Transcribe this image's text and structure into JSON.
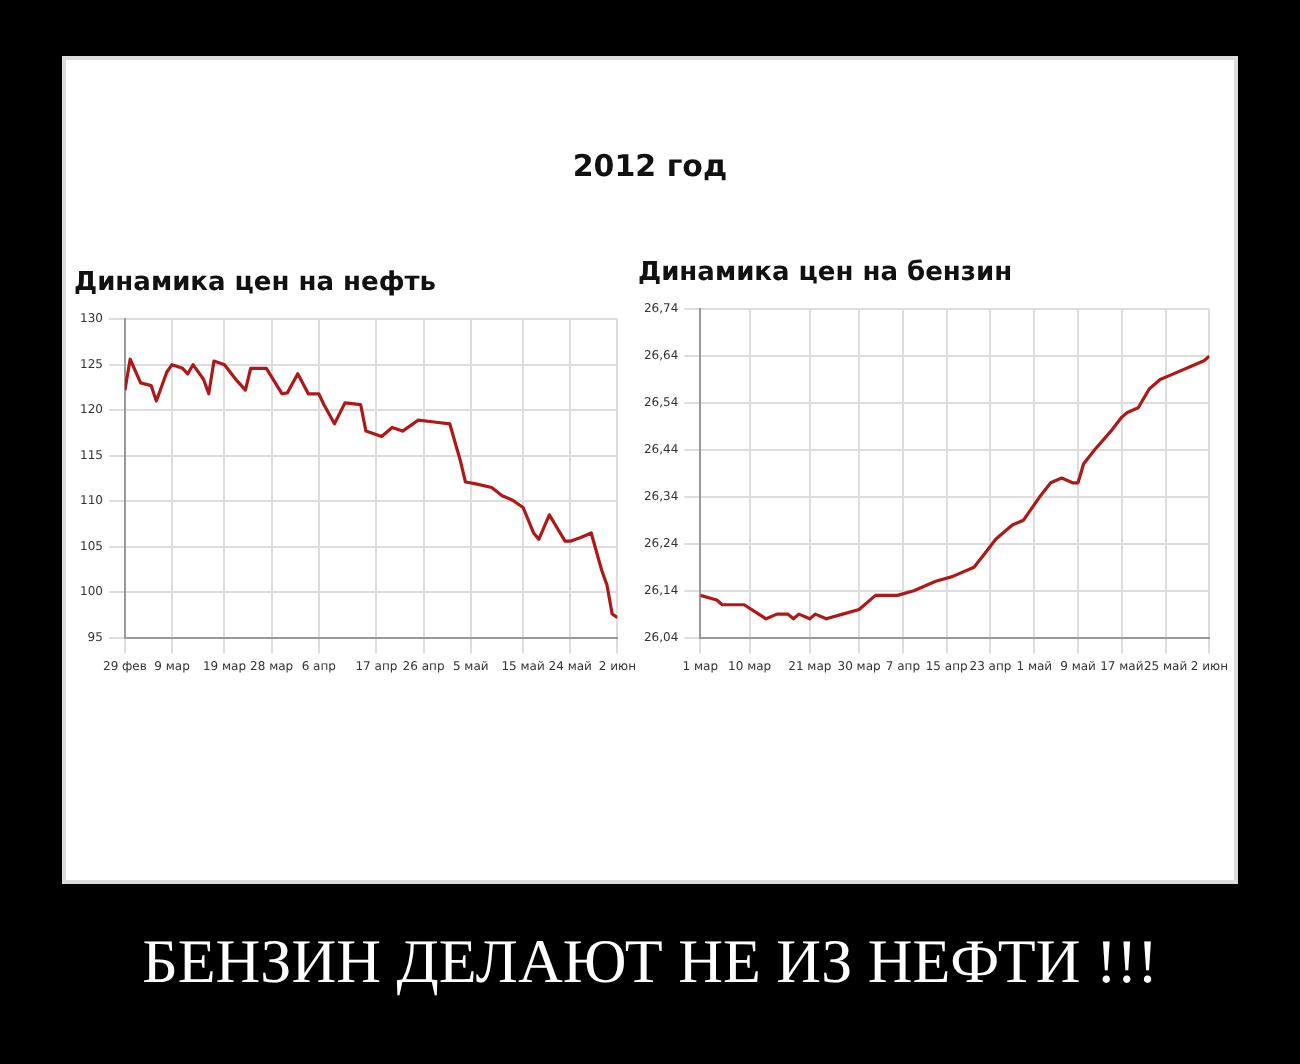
{
  "chart_data": [
    {
      "type": "line",
      "title": "Динамика цен на нефть",
      "annotations": [
        "2012 год"
      ],
      "x": [
        "--02-29",
        "--03-01",
        "--03-03",
        "--03-05",
        "--03-06",
        "--03-08",
        "--03-09",
        "--03-11",
        "--03-12",
        "--03-13",
        "--03-15",
        "--03-16",
        "--03-17",
        "--03-19",
        "--03-21",
        "--03-23",
        "--03-24",
        "--03-27",
        "--03-30",
        "--03-31",
        "--04-02",
        "--04-04",
        "--04-06",
        "--04-07",
        "--04-09",
        "--04-11",
        "--04-14",
        "--04-15",
        "--04-18",
        "--04-20",
        "--04-22",
        "--04-25",
        "--04-28",
        "--05-01",
        "--05-03",
        "--05-04",
        "--05-06",
        "--05-09",
        "--05-11",
        "--05-13",
        "--05-15",
        "--05-17",
        "--05-18",
        "--05-20",
        "--05-23",
        "--05-24",
        "--05-26",
        "--05-28",
        "--05-30",
        "--05-31",
        "--06-01",
        "--06-02"
      ],
      "series": [
        {
          "color": "#b01818",
          "values": [
            122.2,
            125.6,
            123,
            122.7,
            121,
            124.2,
            125,
            124.6,
            124,
            125,
            123.4,
            121.8,
            125.4,
            125,
            123.5,
            122.2,
            124.6,
            124.6,
            121.8,
            121.9,
            124,
            121.8,
            121.8,
            120.6,
            118.5,
            120.8,
            120.6,
            117.7,
            117.1,
            118.1,
            117.7,
            118.9,
            118.7,
            118.5,
            114.5,
            112.1,
            111.9,
            111.5,
            110.6,
            110.1,
            109.3,
            106.5,
            105.8,
            108.5,
            105.6,
            105.6,
            106,
            106.5,
            102.4,
            100.8,
            97.6,
            97.2
          ]
        }
      ],
      "xlim": [
        "--02-29",
        "--06-02"
      ],
      "xticks": [
        {
          "value": "--02-29",
          "label": "29 фев"
        },
        {
          "value": "--03-09",
          "label": "9 мар"
        },
        {
          "value": "--03-19",
          "label": "19 мар"
        },
        {
          "value": "--03-28",
          "label": "28 мар"
        },
        {
          "value": "--04-06",
          "label": "6 апр"
        },
        {
          "value": "--04-17",
          "label": "17 апр"
        },
        {
          "value": "--04-26",
          "label": "26 апр"
        },
        {
          "value": "--05-05",
          "label": "5 май"
        },
        {
          "value": "--05-15",
          "label": "15 май"
        },
        {
          "value": "--05-24",
          "label": "24 май"
        },
        {
          "value": "--06-02",
          "label": "2 июн"
        }
      ],
      "ylim": [
        95,
        130
      ],
      "yticks": [
        95,
        100,
        105,
        110,
        115,
        120,
        125,
        130
      ],
      "grid": true,
      "legend": false,
      "marker": "none",
      "line_style": "solid"
    },
    {
      "type": "line",
      "title": "Динамика цен на бензин",
      "annotations": [
        "БЕНЗИН ДЕЛАЮТ НЕ ИЗ НЕФТИ !!!"
      ],
      "x": [
        "--03-01",
        "--03-04",
        "--03-05",
        "--03-09",
        "--03-13",
        "--03-15",
        "--03-17",
        "--03-18",
        "--03-19",
        "--03-21",
        "--03-22",
        "--03-24",
        "--03-27",
        "--03-30",
        "--04-02",
        "--04-05",
        "--04-06",
        "--04-09",
        "--04-11",
        "--04-13",
        "--04-16",
        "--04-20",
        "--04-22",
        "--04-24",
        "--04-27",
        "--04-29",
        "--05-02",
        "--05-04",
        "--05-06",
        "--05-08",
        "--05-09",
        "--05-10",
        "--05-12",
        "--05-15",
        "--05-17",
        "--05-18",
        "--05-20",
        "--05-22",
        "--05-24",
        "--05-26",
        "--05-30",
        "--06-01",
        "--06-02"
      ],
      "series": [
        {
          "color": "#b01818",
          "values": [
            26.13,
            26.12,
            26.11,
            26.11,
            26.08,
            26.09,
            26.09,
            26.08,
            26.09,
            26.08,
            26.09,
            26.08,
            26.09,
            26.1,
            26.13,
            26.13,
            26.13,
            26.14,
            26.15,
            26.16,
            26.17,
            26.19,
            26.22,
            26.25,
            26.28,
            26.29,
            26.34,
            26.37,
            26.38,
            26.37,
            26.37,
            26.41,
            26.44,
            26.48,
            26.51,
            26.52,
            26.53,
            26.57,
            26.59,
            26.6,
            26.62,
            26.63,
            26.64
          ]
        }
      ],
      "xlim": [
        "--03-01",
        "--06-02"
      ],
      "xticks": [
        {
          "value": "--03-01",
          "label": "1 мар"
        },
        {
          "value": "--03-10",
          "label": "10 мар"
        },
        {
          "value": "--03-21",
          "label": "21 мар"
        },
        {
          "value": "--03-30",
          "label": "30 мар"
        },
        {
          "value": "--04-07",
          "label": "7 апр"
        },
        {
          "value": "--04-15",
          "label": "15 апр"
        },
        {
          "value": "--04-23",
          "label": "23 апр"
        },
        {
          "value": "--05-01",
          "label": "1 май"
        },
        {
          "value": "--05-09",
          "label": "9 май"
        },
        {
          "value": "--05-17",
          "label": "17 май"
        },
        {
          "value": "--05-25",
          "label": "25 май"
        },
        {
          "value": "--06-02",
          "label": "2 июн"
        }
      ],
      "ylim": [
        26.04,
        26.74
      ],
      "yticks": [
        {
          "value": 26.04,
          "label": "26,04"
        },
        {
          "value": 26.14,
          "label": "26,14"
        },
        {
          "value": 26.24,
          "label": "26,24"
        },
        {
          "value": 26.34,
          "label": "26,34"
        },
        {
          "value": 26.44,
          "label": "26,44"
        },
        {
          "value": 26.54,
          "label": "26,54"
        },
        {
          "value": 26.64,
          "label": "26,64"
        },
        {
          "value": 26.74,
          "label": "26,74"
        }
      ],
      "grid": true,
      "legend": false,
      "marker": "none",
      "line_style": "solid"
    }
  ]
}
